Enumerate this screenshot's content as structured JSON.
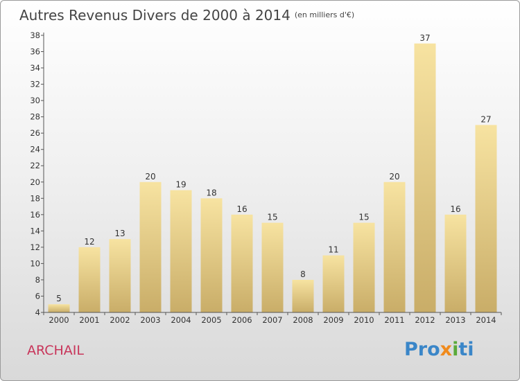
{
  "title": "Autres Revenus Divers de 2000 à 2014",
  "subtitle": "(en milliers d'€)",
  "town": "ARCHAIL",
  "logo": {
    "p1": "Pro",
    "p2": "x",
    "p3": "i",
    "p4": "ti"
  },
  "colors": {
    "bar_top": "#f7e3a1",
    "bar_bottom": "#c9ad68",
    "town": "#c8355a"
  },
  "chart_data": {
    "type": "bar",
    "title": "Autres Revenus Divers de 2000 à 2014",
    "subtitle": "(en milliers d'€)",
    "categories": [
      "2000",
      "2001",
      "2002",
      "2003",
      "2004",
      "2005",
      "2006",
      "2007",
      "2008",
      "2009",
      "2010",
      "2011",
      "2012",
      "2013",
      "2014"
    ],
    "values": [
      5,
      12,
      13,
      20,
      19,
      18,
      16,
      15,
      8,
      11,
      15,
      20,
      37,
      16,
      27
    ],
    "ylim": [
      4,
      38
    ],
    "yticks": [
      4,
      6,
      8,
      10,
      12,
      14,
      16,
      18,
      20,
      22,
      24,
      26,
      28,
      30,
      32,
      34,
      36,
      38
    ],
    "grid": false,
    "legend": "none"
  }
}
